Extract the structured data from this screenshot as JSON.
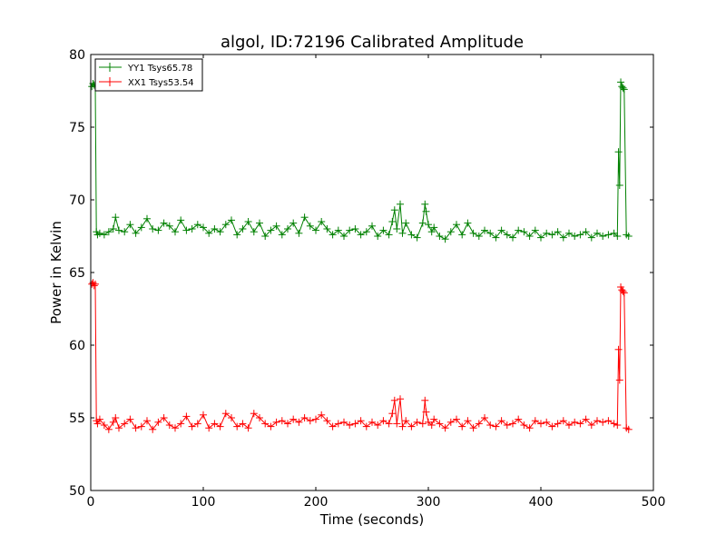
{
  "chart_data": {
    "type": "line",
    "title": "algol, ID:72196 Calibrated Amplitude",
    "xlabel": "Time (seconds)",
    "ylabel": "Power in Kelvin",
    "xlim": [
      0,
      500
    ],
    "ylim": [
      50,
      80
    ],
    "xticks": [
      "0",
      "100",
      "200",
      "300",
      "400",
      "500"
    ],
    "yticks": [
      "50",
      "55",
      "60",
      "65",
      "70",
      "75",
      "80"
    ],
    "grid": false,
    "legend_position": "top-left",
    "marker": "plus",
    "series": [
      {
        "name": "YY1 Tsys65.78",
        "color": "#008000",
        "x": [
          1,
          2,
          3,
          4,
          5,
          6,
          8,
          12,
          16,
          20,
          22,
          25,
          30,
          35,
          40,
          45,
          50,
          55,
          60,
          65,
          70,
          75,
          80,
          85,
          90,
          95,
          100,
          105,
          110,
          115,
          120,
          125,
          130,
          135,
          140,
          145,
          150,
          155,
          160,
          165,
          170,
          175,
          180,
          185,
          190,
          195,
          200,
          205,
          210,
          215,
          220,
          225,
          230,
          235,
          240,
          245,
          250,
          255,
          260,
          265,
          268,
          270,
          272,
          275,
          277,
          280,
          285,
          290,
          295,
          297,
          298,
          300,
          303,
          305,
          310,
          315,
          320,
          325,
          330,
          335,
          340,
          345,
          350,
          355,
          360,
          365,
          370,
          375,
          380,
          385,
          390,
          395,
          400,
          405,
          410,
          415,
          420,
          425,
          430,
          435,
          440,
          445,
          450,
          455,
          460,
          465,
          468,
          469,
          470,
          471,
          472,
          473,
          474,
          476,
          478
        ],
        "y": [
          77.8,
          78.0,
          77.9,
          77.8,
          67.8,
          67.6,
          67.7,
          67.6,
          67.8,
          68.0,
          68.8,
          67.9,
          67.8,
          68.3,
          67.7,
          68.1,
          68.7,
          68.0,
          67.9,
          68.4,
          68.2,
          67.8,
          68.6,
          67.9,
          68.0,
          68.3,
          68.1,
          67.7,
          68.0,
          67.8,
          68.3,
          68.6,
          67.6,
          68.0,
          68.5,
          67.8,
          68.4,
          67.5,
          67.9,
          68.2,
          67.6,
          68.0,
          68.4,
          67.7,
          68.8,
          68.2,
          67.9,
          68.5,
          68.0,
          67.6,
          67.9,
          67.5,
          67.9,
          68.0,
          67.6,
          67.8,
          68.2,
          67.5,
          67.9,
          67.6,
          68.5,
          69.3,
          68.0,
          69.7,
          67.7,
          68.4,
          67.6,
          67.4,
          68.4,
          69.7,
          69.2,
          68.3,
          67.8,
          68.1,
          67.5,
          67.3,
          67.8,
          68.3,
          67.6,
          68.4,
          67.7,
          67.5,
          67.9,
          67.7,
          67.4,
          67.9,
          67.6,
          67.4,
          67.9,
          67.8,
          67.5,
          67.9,
          67.4,
          67.7,
          67.6,
          67.8,
          67.4,
          67.7,
          67.5,
          67.6,
          67.8,
          67.4,
          67.7,
          67.5,
          67.6,
          67.7,
          67.5,
          73.3,
          71.0,
          78.1,
          77.8,
          77.7,
          77.6,
          67.6,
          67.5
        ]
      },
      {
        "name": "XX1 Tsys53.54",
        "color": "#ff0000",
        "x": [
          1,
          2,
          3,
          4,
          5,
          6,
          8,
          12,
          16,
          20,
          22,
          25,
          30,
          35,
          40,
          45,
          50,
          55,
          60,
          65,
          70,
          75,
          80,
          85,
          90,
          95,
          100,
          105,
          110,
          115,
          120,
          125,
          130,
          135,
          140,
          145,
          150,
          155,
          160,
          165,
          170,
          175,
          180,
          185,
          190,
          195,
          200,
          205,
          210,
          215,
          220,
          225,
          230,
          235,
          240,
          245,
          250,
          255,
          260,
          265,
          268,
          270,
          272,
          275,
          277,
          280,
          285,
          290,
          295,
          297,
          298,
          300,
          303,
          305,
          310,
          315,
          320,
          325,
          330,
          335,
          340,
          345,
          350,
          355,
          360,
          365,
          370,
          375,
          380,
          385,
          390,
          395,
          400,
          405,
          410,
          415,
          420,
          425,
          430,
          435,
          440,
          445,
          450,
          455,
          460,
          465,
          468,
          469,
          470,
          471,
          472,
          473,
          474,
          476,
          478
        ],
        "y": [
          64.2,
          64.3,
          64.1,
          64.2,
          54.8,
          54.6,
          54.9,
          54.5,
          54.2,
          54.7,
          55.0,
          54.3,
          54.6,
          54.9,
          54.3,
          54.4,
          54.8,
          54.2,
          54.7,
          55.0,
          54.5,
          54.3,
          54.6,
          55.1,
          54.4,
          54.6,
          55.2,
          54.3,
          54.6,
          54.4,
          55.3,
          55.0,
          54.4,
          54.6,
          54.3,
          55.3,
          55.0,
          54.6,
          54.4,
          54.7,
          54.8,
          54.6,
          54.9,
          54.7,
          55.0,
          54.8,
          54.9,
          55.2,
          54.8,
          54.4,
          54.6,
          54.7,
          54.5,
          54.6,
          54.8,
          54.4,
          54.7,
          54.5,
          54.8,
          54.6,
          55.3,
          56.2,
          54.6,
          56.3,
          54.4,
          54.8,
          54.4,
          54.7,
          54.6,
          56.2,
          55.4,
          54.7,
          54.5,
          54.9,
          54.6,
          54.3,
          54.7,
          54.9,
          54.4,
          54.8,
          54.3,
          54.6,
          55.0,
          54.5,
          54.4,
          54.8,
          54.5,
          54.6,
          54.9,
          54.5,
          54.3,
          54.8,
          54.6,
          54.7,
          54.4,
          54.6,
          54.8,
          54.5,
          54.7,
          54.6,
          54.9,
          54.5,
          54.8,
          54.7,
          54.8,
          54.6,
          54.5,
          59.7,
          57.6,
          64.0,
          63.8,
          63.7,
          63.6,
          54.3,
          54.2
        ]
      }
    ]
  }
}
